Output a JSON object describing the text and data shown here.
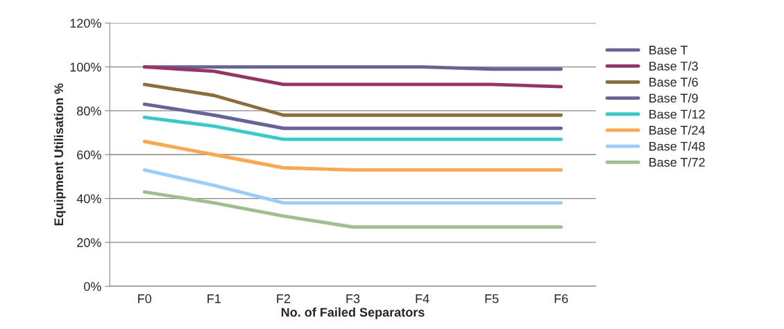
{
  "chart_data": {
    "type": "line",
    "xlabel": "No. of Failed Separators",
    "ylabel": "Equipment Utilisation %",
    "categories": [
      "F0",
      "F1",
      "F2",
      "F3",
      "F4",
      "F5",
      "F6"
    ],
    "ylim": [
      0,
      120
    ],
    "yticks": [
      {
        "value": 0,
        "label": "0%"
      },
      {
        "value": 20,
        "label": "20%"
      },
      {
        "value": 40,
        "label": "40%"
      },
      {
        "value": 60,
        "label": "60%"
      },
      {
        "value": 80,
        "label": "80%"
      },
      {
        "value": 100,
        "label": "100%"
      },
      {
        "value": 120,
        "label": "120%"
      }
    ],
    "grid": "y",
    "legend": "right",
    "marker": "none",
    "line_style": "solid",
    "series": [
      {
        "name": "Base T",
        "color": "#64639a",
        "values": [
          100,
          100,
          100,
          100,
          100,
          99,
          99
        ]
      },
      {
        "name": "Base T/3",
        "color": "#993366",
        "values": [
          100,
          98,
          92,
          92,
          92,
          92,
          91
        ]
      },
      {
        "name": "Base T/6",
        "color": "#8e6e38",
        "values": [
          92,
          87,
          78,
          78,
          78,
          78,
          78
        ]
      },
      {
        "name": "Base T/9",
        "color": "#64639a",
        "values": [
          83,
          78,
          72,
          72,
          72,
          72,
          72
        ]
      },
      {
        "name": "Base T/12",
        "color": "#33cccc",
        "values": [
          77,
          73,
          67,
          67,
          67,
          67,
          67
        ]
      },
      {
        "name": "Base T/24",
        "color": "#ffa64d",
        "values": [
          66,
          60,
          54,
          53,
          53,
          53,
          53
        ]
      },
      {
        "name": "Base T/48",
        "color": "#99ccff",
        "values": [
          53,
          46,
          38,
          38,
          38,
          38,
          38
        ]
      },
      {
        "name": "Base T/72",
        "color": "#9fbf8f",
        "values": [
          43,
          38,
          32,
          27,
          27,
          27,
          27
        ]
      }
    ]
  }
}
